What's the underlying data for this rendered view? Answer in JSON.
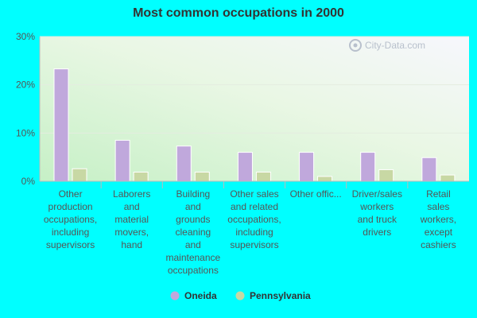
{
  "chart_data": {
    "type": "bar",
    "title": "Most common occupations in 2000",
    "ylim": [
      0,
      30
    ],
    "yticks": [
      0,
      10,
      20,
      30
    ],
    "ytick_labels": [
      "0%",
      "10%",
      "20%",
      "30%"
    ],
    "categories": [
      [
        "Other",
        "production",
        "occupations,",
        "including",
        "supervisors"
      ],
      [
        "Laborers",
        "and",
        "material",
        "movers,",
        "hand"
      ],
      [
        "Building",
        "and",
        "grounds",
        "cleaning",
        "and",
        "maintenance",
        "occupations"
      ],
      [
        "Other sales",
        "and related",
        "occupations,",
        "including",
        "supervisors"
      ],
      [
        "Other offic..."
      ],
      [
        "Driver/sales",
        "workers",
        "and truck",
        "drivers"
      ],
      [
        "Retail",
        "sales",
        "workers,",
        "except",
        "cashiers"
      ]
    ],
    "series": [
      {
        "name": "Oneida",
        "color": "#c0a8dc",
        "values": [
          23.3,
          8.5,
          7.3,
          6.0,
          6.0,
          6.0,
          4.9
        ]
      },
      {
        "name": "Pennsylvania",
        "color": "#c8d8a4",
        "values": [
          2.6,
          1.9,
          1.9,
          1.9,
          1.0,
          2.4,
          1.3
        ]
      }
    ],
    "legend_position": "bottom",
    "grid": true
  },
  "watermark": "City-Data.com"
}
